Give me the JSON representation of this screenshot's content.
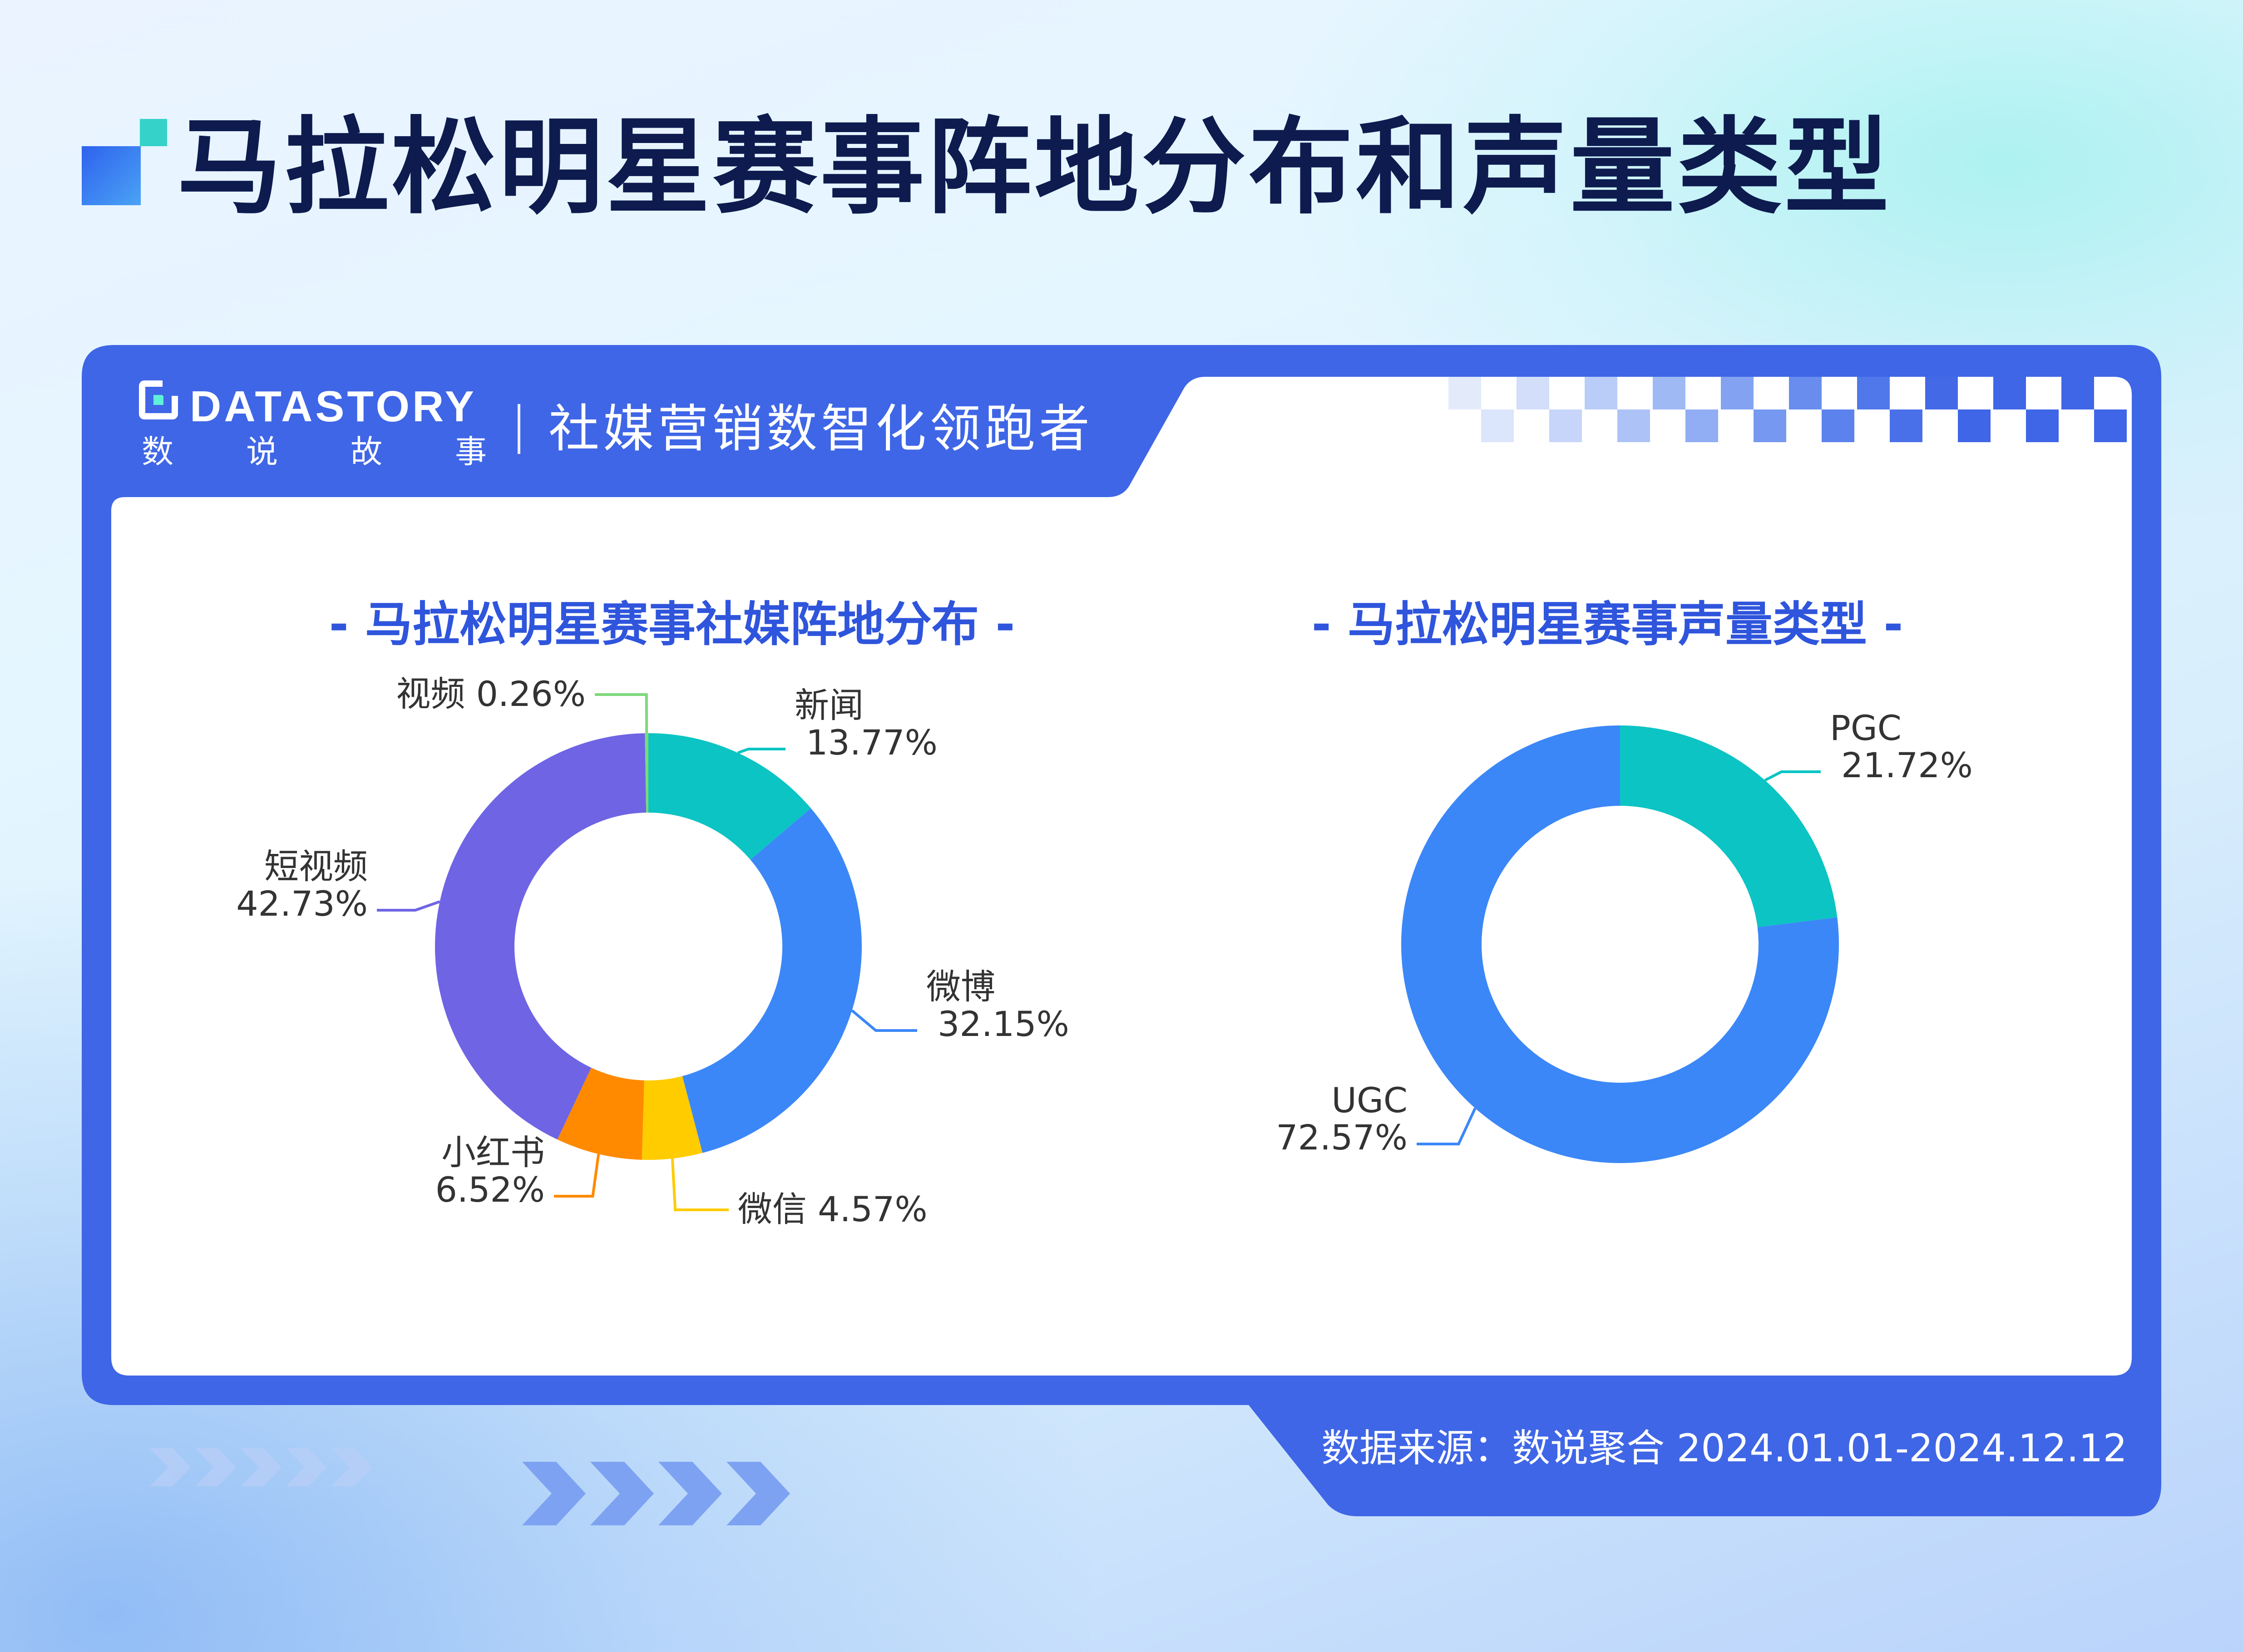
{
  "page": {
    "title": "马拉松明星赛事阵地分布和声量类型"
  },
  "brand": {
    "wordmark": "DATASTORY",
    "chinese_name": [
      "数",
      "说",
      "故",
      "事"
    ],
    "slogan": "社媒营销数智化领跑者"
  },
  "footer": {
    "source": "数据来源：数说聚合 2024.01.01-2024.12.12"
  },
  "colors": {
    "frame_blue": "#3f66e6",
    "title_dark": "#0d1b4f",
    "chart_title_blue": "#2f55dc"
  },
  "chart_data": [
    {
      "type": "pie",
      "donut": true,
      "title": "- 马拉松明星赛事社媒阵地分布 -",
      "slices": [
        {
          "label": "新闻",
          "value": 13.77,
          "display": "13.77%",
          "color": "#0cc4c4"
        },
        {
          "label": "微博",
          "value": 32.15,
          "display": "32.15%",
          "color": "#3b87f7"
        },
        {
          "label": "微信",
          "value": 4.57,
          "display": "4.57%",
          "color": "#ffcc00"
        },
        {
          "label": "小红书",
          "value": 6.52,
          "display": "6.52%",
          "color": "#ff8a00"
        },
        {
          "label": "短视频",
          "value": 42.73,
          "display": "42.73%",
          "color": "#6f64e4"
        },
        {
          "label": "视频",
          "value": 0.26,
          "display": "0.26%",
          "color": "#7dd97a"
        }
      ]
    },
    {
      "type": "pie",
      "donut": true,
      "title": "- 马拉松明星赛事声量类型 -",
      "slices": [
        {
          "label": "PGC",
          "value": 21.72,
          "display": "21.72%",
          "color": "#0cc4c4"
        },
        {
          "label": "UGC",
          "value": 72.57,
          "display": "72.57%",
          "color": "#3b87f7"
        }
      ]
    }
  ]
}
